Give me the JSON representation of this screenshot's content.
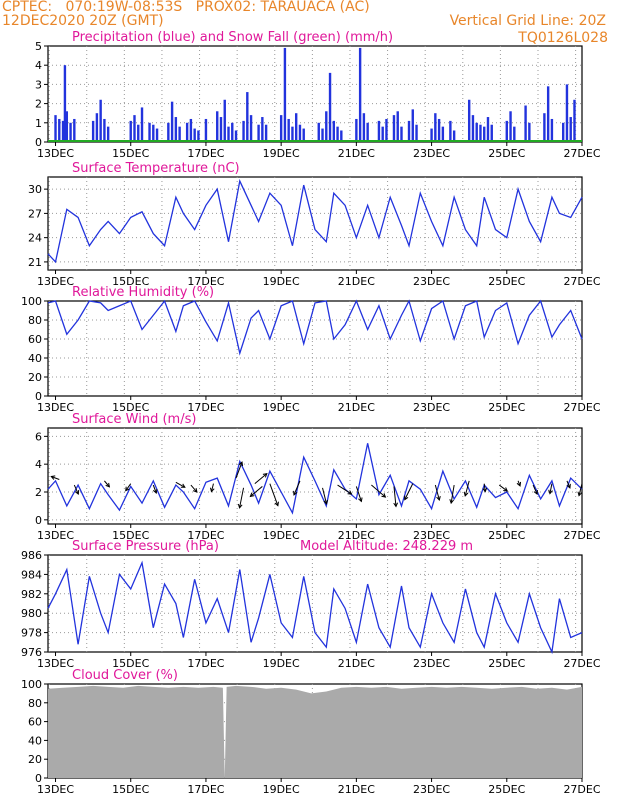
{
  "header": {
    "line1_left": "CPTEC:   070:19W-08:53S   PROX02: TARAUACA (AC)",
    "line2_left": "12DEC2020 20Z (GMT)",
    "line2_right": "Vertical Grid Line: 20Z",
    "line3_right": "TQ0126L028"
  },
  "colors": {
    "header": "#e8862a",
    "title": "#e0189a",
    "series": "#2233dd",
    "snow": "#22aa22",
    "cloud": "#aaaaaa",
    "grid": "#999999"
  },
  "x_axis": {
    "start_day": 12.8,
    "end_day": 27.0,
    "tick_labels": [
      "13DEC",
      "15DEC",
      "17DEC",
      "19DEC",
      "21DEC",
      "23DEC",
      "25DEC",
      "27DEC"
    ],
    "tick_days": [
      13,
      15,
      17,
      19,
      21,
      23,
      25,
      27
    ]
  },
  "chart_data": [
    {
      "type": "bar",
      "title": "Precipitation (blue) and Snow Fall (green) (mm/h)",
      "ylim": [
        0,
        5
      ],
      "yticks": [
        0,
        1,
        2,
        3,
        4,
        5
      ],
      "series": [
        {
          "name": "Precipitation",
          "x": [
            13.0,
            13.1,
            13.2,
            13.25,
            13.3,
            13.4,
            13.5,
            14.0,
            14.1,
            14.2,
            14.3,
            14.4,
            15.0,
            15.1,
            15.2,
            15.3,
            15.5,
            15.6,
            15.7,
            16.0,
            16.1,
            16.2,
            16.3,
            16.5,
            16.6,
            16.7,
            16.8,
            17.0,
            17.3,
            17.4,
            17.5,
            17.6,
            17.7,
            17.8,
            18.0,
            18.1,
            18.2,
            18.4,
            18.5,
            18.6,
            19.0,
            19.1,
            19.2,
            19.3,
            19.4,
            19.5,
            19.6,
            20.0,
            20.1,
            20.2,
            20.3,
            20.4,
            20.5,
            20.6,
            21.0,
            21.1,
            21.2,
            21.3,
            21.6,
            21.7,
            21.8,
            22.0,
            22.1,
            22.2,
            22.4,
            22.5,
            22.6,
            23.0,
            23.1,
            23.2,
            23.3,
            23.5,
            23.6,
            24.0,
            24.1,
            24.2,
            24.3,
            24.4,
            24.5,
            24.6,
            25.0,
            25.1,
            25.2,
            25.5,
            25.6,
            26.0,
            26.1,
            26.2,
            26.5,
            26.6,
            26.7,
            26.8
          ],
          "values": [
            1.4,
            1.2,
            1.1,
            4.0,
            1.6,
            1.0,
            1.2,
            1.1,
            1.5,
            2.2,
            1.2,
            0.8,
            1.1,
            1.4,
            0.9,
            1.8,
            1.0,
            0.9,
            0.7,
            1.0,
            2.1,
            1.3,
            0.8,
            1.0,
            1.2,
            0.7,
            0.6,
            1.2,
            1.6,
            1.3,
            2.2,
            0.8,
            1.0,
            0.6,
            1.1,
            2.6,
            1.4,
            0.9,
            1.3,
            0.9,
            1.4,
            4.9,
            1.2,
            0.8,
            1.5,
            0.9,
            0.7,
            1.0,
            0.7,
            1.6,
            3.6,
            1.1,
            0.8,
            0.6,
            1.2,
            4.9,
            1.5,
            1.0,
            1.1,
            0.8,
            1.2,
            1.4,
            1.6,
            0.8,
            1.1,
            1.7,
            0.9,
            0.7,
            1.5,
            1.2,
            0.8,
            1.1,
            0.6,
            2.2,
            1.4,
            1.0,
            0.9,
            0.8,
            1.3,
            0.9,
            1.1,
            1.6,
            0.8,
            1.9,
            1.0,
            1.5,
            2.9,
            1.2,
            1.0,
            3.0,
            1.3,
            2.2
          ]
        },
        {
          "name": "Snow Fall",
          "x": [
            12.8,
            27.0
          ],
          "values": [
            0,
            0
          ]
        }
      ]
    },
    {
      "type": "line",
      "title": "Surface Temperature (nC)",
      "ylim": [
        20,
        31.5
      ],
      "yticks": [
        21,
        24,
        27,
        30
      ],
      "series": [
        {
          "name": "",
          "x": [
            12.8,
            13.0,
            13.3,
            13.6,
            13.9,
            14.2,
            14.4,
            14.7,
            15.0,
            15.3,
            15.6,
            15.9,
            16.2,
            16.4,
            16.7,
            17.0,
            17.3,
            17.6,
            17.9,
            18.2,
            18.4,
            18.7,
            19.0,
            19.3,
            19.6,
            19.9,
            20.2,
            20.4,
            20.7,
            21.0,
            21.3,
            21.6,
            21.9,
            22.2,
            22.4,
            22.7,
            23.0,
            23.3,
            23.6,
            23.9,
            24.2,
            24.4,
            24.7,
            25.0,
            25.3,
            25.6,
            25.9,
            26.2,
            26.4,
            26.7,
            27.0
          ],
          "values": [
            22.0,
            21.0,
            27.5,
            26.5,
            23.0,
            25.0,
            26.0,
            24.5,
            26.5,
            27.2,
            24.5,
            23.0,
            29.0,
            27.0,
            25.0,
            28.0,
            30.0,
            23.5,
            31.0,
            28.0,
            26.0,
            29.5,
            28.0,
            23.0,
            30.5,
            25.0,
            23.5,
            29.5,
            28.0,
            24.0,
            28.0,
            24.0,
            29.0,
            25.5,
            23.0,
            29.5,
            26.0,
            23.0,
            29.0,
            25.0,
            23.0,
            29.0,
            25.0,
            24.0,
            30.0,
            26.0,
            23.5,
            29.0,
            27.0,
            26.5,
            29.0
          ]
        }
      ]
    },
    {
      "type": "line",
      "title": "Relative Humidity (%)",
      "ylim": [
        0,
        100
      ],
      "yticks": [
        0,
        20,
        40,
        60,
        80,
        100
      ],
      "series": [
        {
          "name": "",
          "x": [
            12.8,
            13.0,
            13.3,
            13.6,
            13.9,
            14.2,
            14.4,
            14.7,
            15.0,
            15.3,
            15.6,
            15.9,
            16.2,
            16.4,
            16.7,
            17.0,
            17.3,
            17.6,
            17.9,
            18.2,
            18.4,
            18.7,
            19.0,
            19.3,
            19.6,
            19.9,
            20.2,
            20.4,
            20.7,
            21.0,
            21.3,
            21.6,
            21.9,
            22.2,
            22.4,
            22.7,
            23.0,
            23.3,
            23.6,
            23.9,
            24.2,
            24.4,
            24.7,
            25.0,
            25.3,
            25.6,
            25.9,
            26.2,
            26.4,
            26.7,
            27.0
          ],
          "values": [
            98,
            100,
            65,
            80,
            100,
            98,
            90,
            95,
            100,
            70,
            85,
            100,
            68,
            95,
            100,
            78,
            58,
            98,
            45,
            82,
            90,
            60,
            95,
            100,
            55,
            98,
            100,
            60,
            75,
            100,
            70,
            95,
            60,
            85,
            100,
            58,
            92,
            100,
            60,
            95,
            100,
            62,
            90,
            98,
            55,
            85,
            100,
            62,
            75,
            90,
            60
          ]
        }
      ]
    },
    {
      "type": "line",
      "title": "Surface Wind (m/s)",
      "ylim": [
        -0.3,
        6.6
      ],
      "yticks": [
        0,
        2,
        4,
        6
      ],
      "series": [
        {
          "name": "",
          "x": [
            12.8,
            13.0,
            13.3,
            13.6,
            13.9,
            14.2,
            14.4,
            14.7,
            15.0,
            15.3,
            15.6,
            15.9,
            16.2,
            16.4,
            16.7,
            17.0,
            17.3,
            17.6,
            17.9,
            18.2,
            18.4,
            18.7,
            19.0,
            19.3,
            19.6,
            19.9,
            20.2,
            20.4,
            20.7,
            21.0,
            21.3,
            21.6,
            21.9,
            22.2,
            22.4,
            22.7,
            23.0,
            23.3,
            23.6,
            23.9,
            24.2,
            24.4,
            24.7,
            25.0,
            25.3,
            25.6,
            25.9,
            26.2,
            26.4,
            26.7,
            27.0
          ],
          "values": [
            2.2,
            2.8,
            1.0,
            2.5,
            0.8,
            2.6,
            1.8,
            0.7,
            2.4,
            1.2,
            2.8,
            0.9,
            2.5,
            2.0,
            0.8,
            2.7,
            3.0,
            1.0,
            4.2,
            2.5,
            1.2,
            3.5,
            2.0,
            0.5,
            4.5,
            2.8,
            1.0,
            3.6,
            2.2,
            1.5,
            5.5,
            1.8,
            3.2,
            1.0,
            2.8,
            2.2,
            0.8,
            3.5,
            1.5,
            2.8,
            0.9,
            2.5,
            1.6,
            2.0,
            0.8,
            3.2,
            1.5,
            2.8,
            1.0,
            3.0,
            2.2
          ]
        }
      ],
      "arrows": [
        [
          13.1,
          2.9,
          -0.8,
          0.3
        ],
        [
          13.5,
          2.5,
          0.4,
          -0.9
        ],
        [
          14.3,
          2.8,
          0.5,
          -0.6
        ],
        [
          15.0,
          2.6,
          -0.5,
          -0.7
        ],
        [
          15.6,
          2.5,
          0.3,
          -0.8
        ],
        [
          16.2,
          2.7,
          0.9,
          -0.5
        ],
        [
          16.6,
          2.5,
          0.6,
          -0.7
        ],
        [
          17.2,
          2.6,
          -0.2,
          -0.8
        ],
        [
          17.8,
          3.0,
          0.6,
          1.6
        ],
        [
          18.0,
          2.3,
          -0.4,
          -2.0
        ],
        [
          18.3,
          2.6,
          1.2,
          1.0
        ],
        [
          18.5,
          2.4,
          -1.2,
          -1.0
        ],
        [
          18.7,
          2.6,
          0.8,
          -2.2
        ],
        [
          19.5,
          2.8,
          -0.6,
          -1.4
        ],
        [
          20.1,
          2.3,
          0.4,
          -1.6
        ],
        [
          20.5,
          2.5,
          1.4,
          -0.9
        ],
        [
          21.0,
          2.4,
          0.5,
          -1.5
        ],
        [
          21.4,
          2.5,
          1.4,
          -1.2
        ],
        [
          22.0,
          2.4,
          0.2,
          -2.0
        ],
        [
          22.5,
          2.6,
          -0.8,
          -1.6
        ],
        [
          23.1,
          2.5,
          0.4,
          -1.5
        ],
        [
          23.6,
          2.5,
          -0.3,
          -1.8
        ],
        [
          24.0,
          2.8,
          -0.4,
          -1.5
        ],
        [
          24.4,
          2.6,
          0.1,
          -0.8
        ],
        [
          24.8,
          2.5,
          0.8,
          -0.6
        ],
        [
          25.3,
          2.8,
          0.2,
          -0.5
        ],
        [
          25.7,
          2.5,
          0.4,
          -0.9
        ],
        [
          26.2,
          2.6,
          -0.2,
          -1.0
        ],
        [
          26.6,
          2.8,
          0.3,
          -0.7
        ],
        [
          27.0,
          2.6,
          -0.3,
          -1.2
        ]
      ]
    },
    {
      "type": "line",
      "title": "Surface Pressure (hPa)",
      "annotation": "Model Altitude: 248.229  m",
      "ylim": [
        976,
        986
      ],
      "yticks": [
        976,
        978,
        980,
        982,
        984,
        986
      ],
      "series": [
        {
          "name": "",
          "x": [
            12.8,
            13.0,
            13.3,
            13.6,
            13.9,
            14.2,
            14.4,
            14.7,
            15.0,
            15.3,
            15.6,
            15.9,
            16.2,
            16.4,
            16.7,
            17.0,
            17.3,
            17.6,
            17.9,
            18.2,
            18.4,
            18.7,
            19.0,
            19.3,
            19.6,
            19.9,
            20.2,
            20.4,
            20.7,
            21.0,
            21.3,
            21.6,
            21.9,
            22.2,
            22.4,
            22.7,
            23.0,
            23.3,
            23.6,
            23.9,
            24.2,
            24.4,
            24.7,
            25.0,
            25.3,
            25.6,
            25.9,
            26.2,
            26.4,
            26.7,
            27.0
          ],
          "values": [
            980.5,
            982.0,
            984.5,
            976.8,
            983.8,
            980.0,
            978.0,
            984.0,
            982.5,
            985.2,
            978.5,
            983.0,
            981.0,
            977.5,
            983.5,
            979.0,
            981.5,
            978.0,
            984.5,
            977.0,
            979.5,
            984.0,
            979.0,
            977.5,
            983.8,
            978.0,
            976.5,
            982.5,
            980.5,
            977.0,
            983.0,
            978.5,
            976.5,
            982.8,
            978.5,
            976.5,
            982.0,
            979.0,
            977.0,
            982.5,
            978.0,
            976.5,
            982.0,
            979.0,
            977.0,
            982.0,
            978.5,
            976.0,
            981.5,
            977.5,
            978.0
          ]
        }
      ]
    },
    {
      "type": "area",
      "title": "Cloud Cover (%)",
      "ylim": [
        0,
        100
      ],
      "yticks": [
        0,
        20,
        40,
        60,
        80,
        100
      ],
      "series": [
        {
          "name": "",
          "x": [
            12.8,
            13.2,
            13.6,
            14.0,
            14.4,
            14.8,
            15.2,
            15.6,
            16.0,
            16.4,
            16.8,
            17.2,
            17.45,
            17.5,
            17.55,
            17.8,
            18.2,
            18.6,
            19.0,
            19.4,
            19.8,
            20.2,
            20.6,
            21.0,
            21.4,
            21.8,
            22.2,
            22.6,
            23.0,
            23.4,
            23.8,
            24.2,
            24.6,
            25.0,
            25.4,
            25.8,
            26.2,
            26.6,
            27.0
          ],
          "values": [
            95,
            96,
            97,
            98,
            97,
            96,
            98,
            97,
            96,
            97,
            96,
            97,
            96,
            0,
            97,
            98,
            97,
            95,
            96,
            94,
            90,
            92,
            96,
            97,
            96,
            97,
            95,
            96,
            97,
            96,
            97,
            96,
            95,
            96,
            97,
            95,
            96,
            94,
            97
          ]
        }
      ]
    }
  ]
}
